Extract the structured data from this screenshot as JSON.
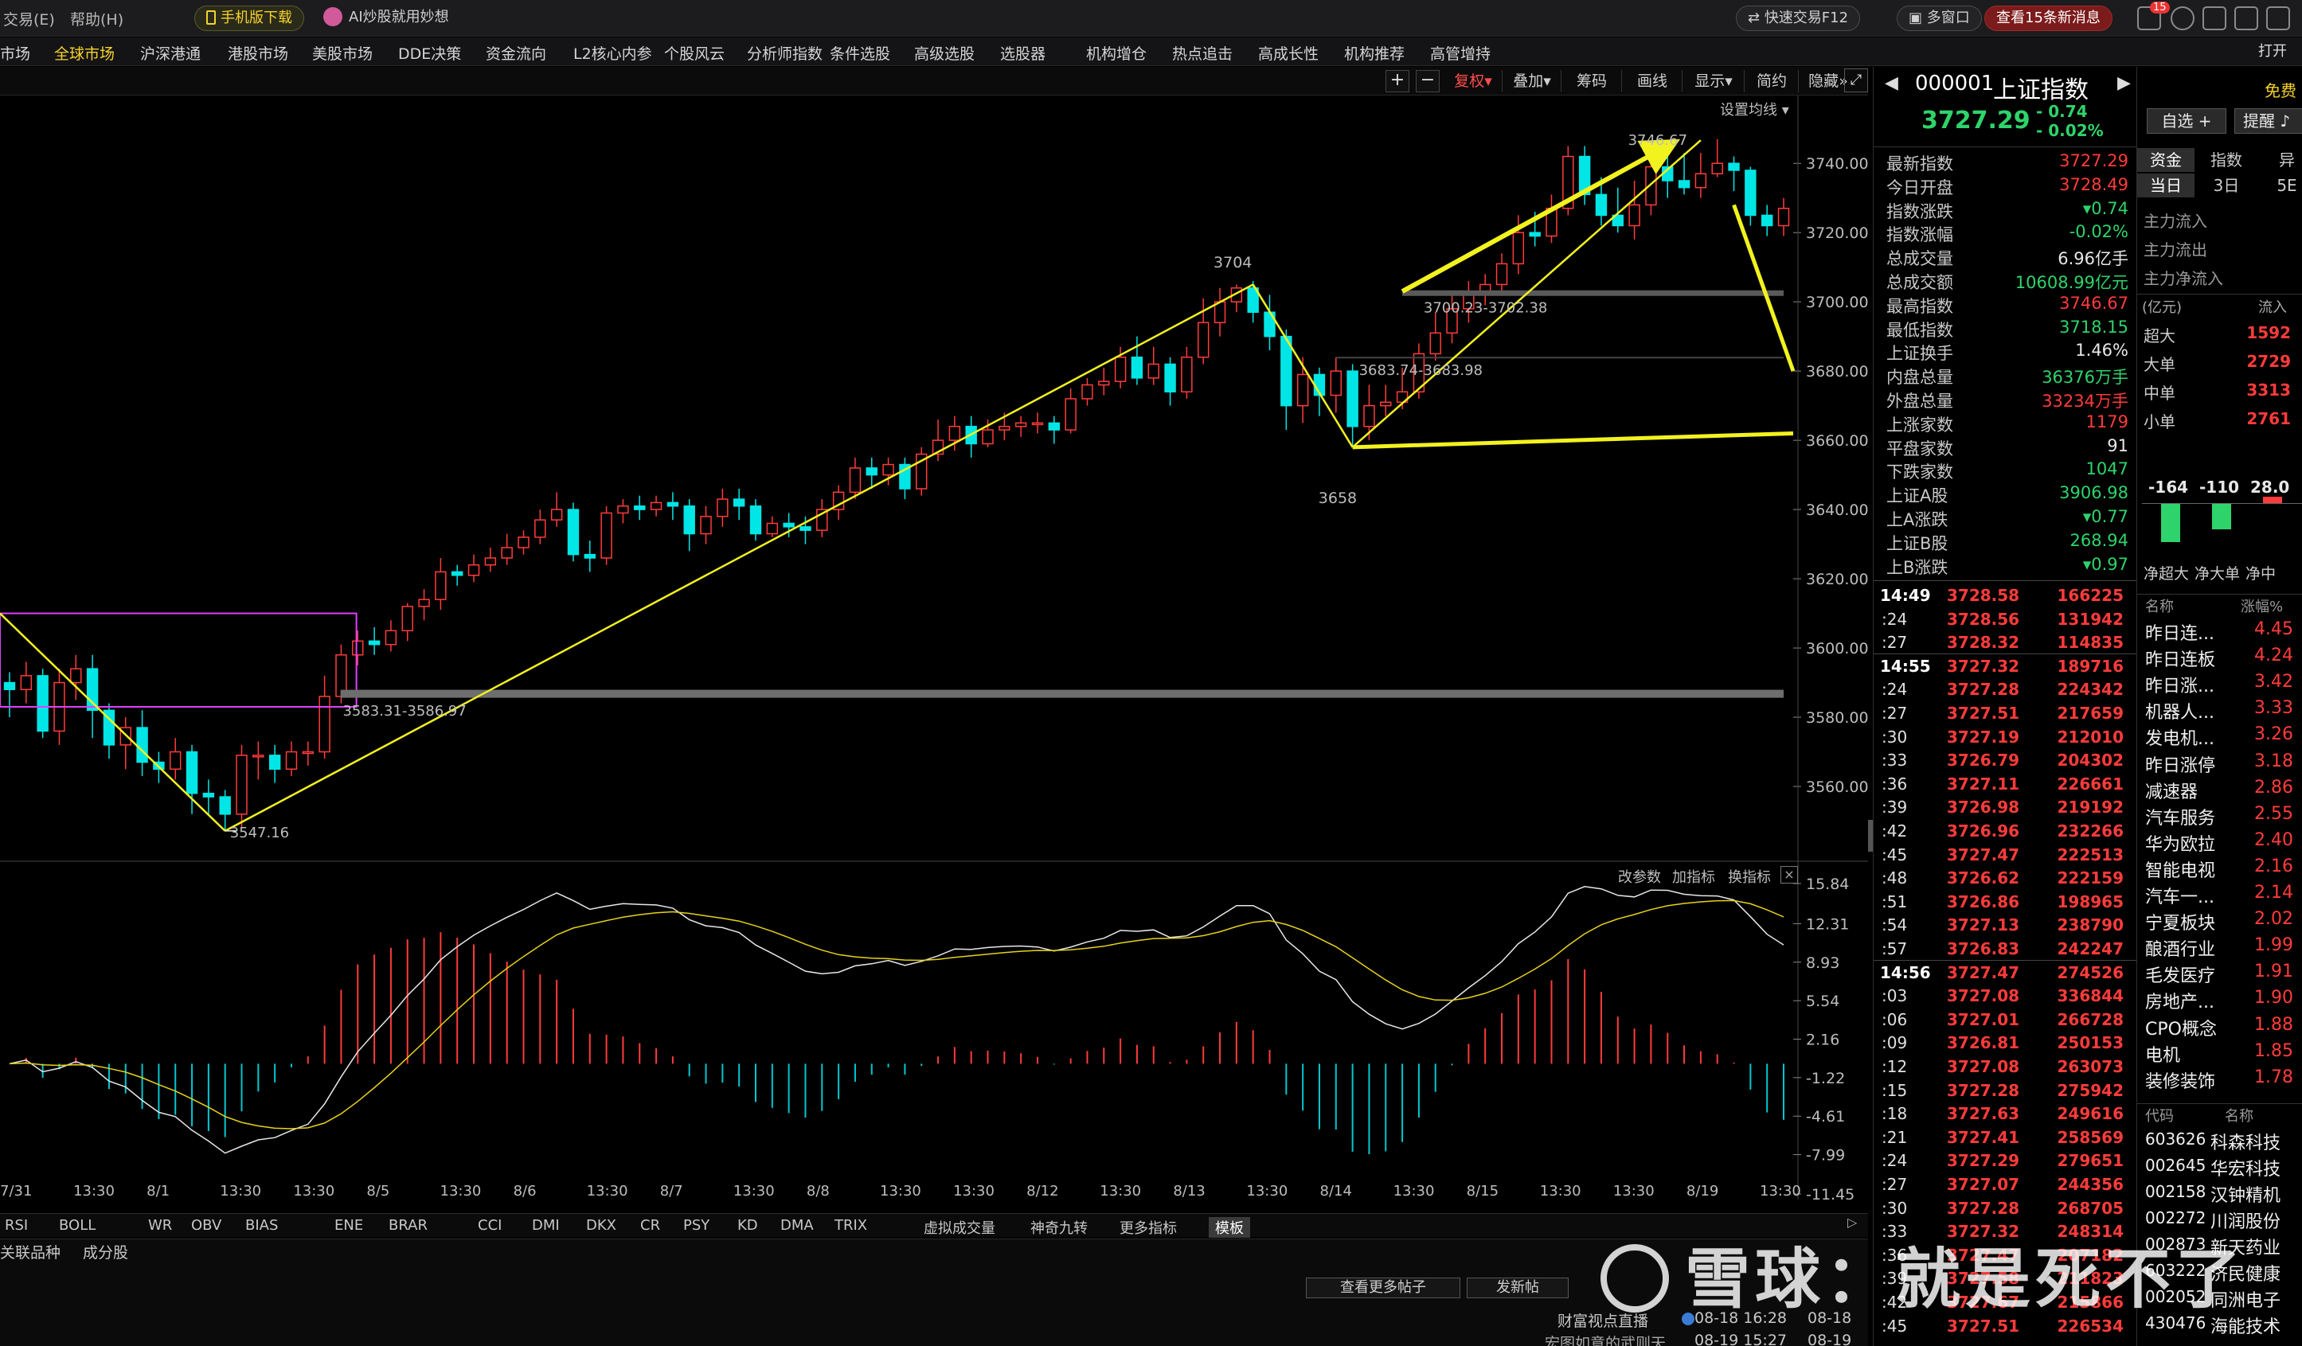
{
  "topbar": {
    "menu_trade": "交易(E)",
    "menu_help": "帮助(H)",
    "mobile_download": "手机版下载",
    "ai_banner": "AI炒股就用妙想",
    "quick_trade": "快速交易F12",
    "multi_window": "多窗口",
    "news_btn": "查看15条新消息",
    "mail_badge": "15",
    "open_label": "打开"
  },
  "nav": {
    "items": [
      "市场",
      "全球市场",
      "沪深港通",
      "港股市场",
      "美股市场",
      "DDE决策",
      "资金流向",
      "L2核心内参",
      "个股风云",
      "分析师指数",
      "条件选股",
      "高级选股",
      "选股器",
      "机构增仓",
      "热点追击",
      "高成长性",
      "机构推荐",
      "高管增持"
    ],
    "selected": "全球市场"
  },
  "chart_toolbar": {
    "fuquan": "复权",
    "overlay": "叠加",
    "chips": "筹码",
    "draw": "画线",
    "display": "显示",
    "simple": "简约",
    "hide": "隐藏",
    "plus": "+",
    "minus": "−",
    "set_ma": "设置均线"
  },
  "price_axis": [
    "3740.00",
    "3720.00",
    "3700.00",
    "3680.00",
    "3660.00",
    "3640.00",
    "3620.00",
    "3600.00",
    "3580.00",
    "3560.00"
  ],
  "macd_axis": [
    "15.84",
    "12.31",
    "8.93",
    "5.54",
    "2.16",
    "-1.22",
    "-4.61",
    "-7.99",
    "-11.45"
  ],
  "macd_controls": {
    "params": "改参数",
    "add": "加指标",
    "switch": "换指标"
  },
  "date_axis": [
    "7/31",
    "13:30",
    "8/1",
    "13:30",
    "13:30",
    "8/5",
    "13:30",
    "8/6",
    "13:30",
    "8/7",
    "13:30",
    "8/8",
    "13:30",
    "13:30",
    "8/12",
    "13:30",
    "8/13",
    "13:30",
    "8/14",
    "13:30",
    "8/15",
    "13:30",
    "13:30",
    "8/19",
    "13:30"
  ],
  "annotations": {
    "peak1": "3704",
    "trough1": "3658",
    "high_label": "3746.67",
    "low_label": "3547.16",
    "gap1": "3700.23-3702.38",
    "gap2": "3683.74-3683.98",
    "gap3": "3583.31-3586.97"
  },
  "chart_data": {
    "type": "candlestick",
    "symbol": "上证指数",
    "high_marked": 3746.67,
    "low_marked": 3547.16,
    "ylim": [
      3540,
      3755
    ],
    "candles": [
      [
        3590,
        3588,
        3593,
        3580
      ],
      [
        3588,
        3592,
        3596,
        3584
      ],
      [
        3592,
        3576,
        3594,
        3574
      ],
      [
        3576,
        3590,
        3594,
        3572
      ],
      [
        3590,
        3594,
        3598,
        3585
      ],
      [
        3594,
        3582,
        3598,
        3574
      ],
      [
        3582,
        3572,
        3584,
        3568
      ],
      [
        3572,
        3577,
        3580,
        3565
      ],
      [
        3577,
        3567,
        3582,
        3563
      ],
      [
        3567,
        3565,
        3570,
        3561
      ],
      [
        3565,
        3570,
        3574,
        3562
      ],
      [
        3570,
        3558,
        3572,
        3552
      ],
      [
        3558,
        3557,
        3562,
        3552
      ],
      [
        3557,
        3552,
        3559,
        3547
      ],
      [
        3552,
        3569,
        3572,
        3548
      ],
      [
        3569,
        3569,
        3573,
        3562
      ],
      [
        3569,
        3565,
        3572,
        3561
      ],
      [
        3565,
        3570,
        3573,
        3563
      ],
      [
        3570,
        3570,
        3573,
        3566
      ],
      [
        3570,
        3586,
        3592,
        3568
      ],
      [
        3586,
        3598,
        3601,
        3584
      ],
      [
        3598,
        3602,
        3605,
        3595
      ],
      [
        3602,
        3601,
        3606,
        3598
      ],
      [
        3601,
        3605,
        3608,
        3599
      ],
      [
        3605,
        3612,
        3613,
        3602
      ],
      [
        3612,
        3614,
        3617,
        3608
      ],
      [
        3614,
        3622,
        3626,
        3611
      ],
      [
        3622,
        3621,
        3624,
        3618
      ],
      [
        3621,
        3624,
        3627,
        3619
      ],
      [
        3624,
        3626,
        3629,
        3622
      ],
      [
        3626,
        3629,
        3633,
        3624
      ],
      [
        3629,
        3632,
        3634,
        3627
      ],
      [
        3632,
        3637,
        3640,
        3630
      ],
      [
        3637,
        3640,
        3645,
        3635
      ],
      [
        3640,
        3627,
        3642,
        3625
      ],
      [
        3627,
        3626,
        3631,
        3622
      ],
      [
        3626,
        3639,
        3641,
        3624
      ],
      [
        3639,
        3641,
        3643,
        3636
      ],
      [
        3641,
        3640,
        3644,
        3637
      ],
      [
        3640,
        3642,
        3644,
        3638
      ],
      [
        3642,
        3641,
        3645,
        3637
      ],
      [
        3641,
        3633,
        3643,
        3628
      ],
      [
        3633,
        3638,
        3641,
        3630
      ],
      [
        3638,
        3643,
        3646,
        3635
      ],
      [
        3643,
        3641,
        3646,
        3637
      ],
      [
        3641,
        3633,
        3643,
        3631
      ],
      [
        3633,
        3636,
        3638,
        3632
      ],
      [
        3636,
        3635,
        3639,
        3632
      ],
      [
        3635,
        3634,
        3638,
        3630
      ],
      [
        3634,
        3640,
        3643,
        3632
      ],
      [
        3640,
        3645,
        3647,
        3637
      ],
      [
        3645,
        3652,
        3655,
        3643
      ],
      [
        3652,
        3650,
        3655,
        3646
      ],
      [
        3650,
        3653,
        3655,
        3647
      ],
      [
        3653,
        3646,
        3655,
        3643
      ],
      [
        3646,
        3656,
        3658,
        3644
      ],
      [
        3656,
        3660,
        3666,
        3654
      ],
      [
        3660,
        3664,
        3667,
        3657
      ],
      [
        3664,
        3659,
        3667,
        3655
      ],
      [
        3659,
        3663,
        3666,
        3658
      ],
      [
        3663,
        3664,
        3668,
        3660
      ],
      [
        3664,
        3665,
        3667,
        3661
      ],
      [
        3665,
        3665,
        3668,
        3662
      ],
      [
        3665,
        3663,
        3667,
        3659
      ],
      [
        3663,
        3672,
        3675,
        3662
      ],
      [
        3672,
        3676,
        3678,
        3670
      ],
      [
        3676,
        3677,
        3681,
        3673
      ],
      [
        3677,
        3684,
        3687,
        3675
      ],
      [
        3684,
        3678,
        3690,
        3676
      ],
      [
        3678,
        3682,
        3687,
        3676
      ],
      [
        3682,
        3674,
        3684,
        3670
      ],
      [
        3674,
        3684,
        3687,
        3672
      ],
      [
        3684,
        3694,
        3701,
        3682
      ],
      [
        3694,
        3700,
        3704,
        3690
      ],
      [
        3700,
        3704,
        3705,
        3697
      ],
      [
        3704,
        3697,
        3706,
        3694
      ],
      [
        3697,
        3690,
        3702,
        3686
      ],
      [
        3690,
        3670,
        3692,
        3663
      ],
      [
        3670,
        3679,
        3684,
        3665
      ],
      [
        3679,
        3673,
        3681,
        3667
      ],
      [
        3673,
        3680,
        3684,
        3668
      ],
      [
        3680,
        3664,
        3682,
        3658
      ],
      [
        3664,
        3670,
        3676,
        3660
      ],
      [
        3670,
        3671,
        3676,
        3667
      ],
      [
        3671,
        3674,
        3681,
        3669
      ],
      [
        3674,
        3685,
        3688,
        3672
      ],
      [
        3685,
        3691,
        3697,
        3683
      ],
      [
        3691,
        3698,
        3703,
        3688
      ],
      [
        3698,
        3702,
        3706,
        3694
      ],
      [
        3702,
        3705,
        3708,
        3699
      ],
      [
        3705,
        3711,
        3714,
        3703
      ],
      [
        3711,
        3720,
        3725,
        3708
      ],
      [
        3720,
        3719,
        3726,
        3716
      ],
      [
        3719,
        3727,
        3731,
        3717
      ],
      [
        3727,
        3742,
        3745,
        3725
      ],
      [
        3742,
        3731,
        3745,
        3728
      ],
      [
        3731,
        3725,
        3736,
        3722
      ],
      [
        3725,
        3722,
        3733,
        3720
      ],
      [
        3722,
        3728,
        3735,
        3718
      ],
      [
        3728,
        3739,
        3743,
        3725
      ],
      [
        3739,
        3735,
        3742,
        3730
      ],
      [
        3735,
        3733,
        3743,
        3731
      ],
      [
        3733,
        3737,
        3743,
        3730
      ],
      [
        3737,
        3740,
        3747,
        3736
      ],
      [
        3740,
        3738,
        3742,
        3732
      ],
      [
        3738,
        3725,
        3739,
        3722
      ],
      [
        3725,
        3722,
        3728,
        3719
      ],
      [
        3722,
        3727,
        3730,
        3719
      ]
    ]
  },
  "right_header": {
    "code": "000001",
    "name": "上证指数",
    "price": "3727.29",
    "change": "- 0.74",
    "pct": "- 0.02%",
    "watch": "自选 +",
    "alert": "提醒",
    "free_label": "免费"
  },
  "quote_rows": [
    {
      "k": "最新指数",
      "v": "3727.29",
      "c": "red"
    },
    {
      "k": "今日开盘",
      "v": "3728.49",
      "c": "red"
    },
    {
      "k": "指数涨跌",
      "v": "▾0.74",
      "c": "grn"
    },
    {
      "k": "指数涨幅",
      "v": "-0.02%",
      "c": "grn"
    },
    {
      "k": "总成交量",
      "v": "6.96亿手",
      "c": "wht"
    },
    {
      "k": "总成交额",
      "v": "10608.99亿元",
      "c": "red2"
    },
    {
      "k": "最高指数",
      "v": "3746.67",
      "c": "red"
    },
    {
      "k": "最低指数",
      "v": "3718.15",
      "c": "grn"
    },
    {
      "k": "上证换手",
      "v": "1.46%",
      "c": "wht"
    },
    {
      "k": "内盘总量",
      "v": "36376万手",
      "c": "grn"
    },
    {
      "k": "外盘总量",
      "v": "33234万手",
      "c": "red"
    },
    {
      "k": "上涨家数",
      "v": "1179",
      "c": "red"
    },
    {
      "k": "平盘家数",
      "v": "91",
      "c": "wht"
    },
    {
      "k": "下跌家数",
      "v": "1047",
      "c": "grn"
    },
    {
      "k": "上证A股",
      "v": "3906.98",
      "c": "grn"
    },
    {
      "k": "上A涨跌",
      "v": "▾0.77",
      "c": "grn"
    },
    {
      "k": "上证B股",
      "v": "268.94",
      "c": "grn"
    },
    {
      "k": "上B涨跌",
      "v": "▾0.97",
      "c": "grn"
    }
  ],
  "ticks": [
    {
      "t": "14:49",
      "p": "3728.58",
      "v": "166225",
      "b": true
    },
    {
      "t": ":24",
      "p": "3728.56",
      "v": "131942"
    },
    {
      "t": ":27",
      "p": "3728.32",
      "v": "114835"
    },
    {
      "t": "14:55",
      "p": "3727.32",
      "v": "189716",
      "b": true
    },
    {
      "t": ":24",
      "p": "3727.28",
      "v": "224342"
    },
    {
      "t": ":27",
      "p": "3727.51",
      "v": "217659"
    },
    {
      "t": ":30",
      "p": "3727.19",
      "v": "212010"
    },
    {
      "t": ":33",
      "p": "3726.79",
      "v": "204302"
    },
    {
      "t": ":36",
      "p": "3727.11",
      "v": "226661"
    },
    {
      "t": ":39",
      "p": "3726.98",
      "v": "219192"
    },
    {
      "t": ":42",
      "p": "3726.96",
      "v": "232266"
    },
    {
      "t": ":45",
      "p": "3727.47",
      "v": "222513"
    },
    {
      "t": ":48",
      "p": "3726.62",
      "v": "222159"
    },
    {
      "t": ":51",
      "p": "3726.86",
      "v": "198965"
    },
    {
      "t": ":54",
      "p": "3727.13",
      "v": "238790"
    },
    {
      "t": ":57",
      "p": "3726.83",
      "v": "242247"
    },
    {
      "t": "14:56",
      "p": "3727.47",
      "v": "274526",
      "b": true
    },
    {
      "t": ":03",
      "p": "3727.08",
      "v": "336844"
    },
    {
      "t": ":06",
      "p": "3727.01",
      "v": "266728"
    },
    {
      "t": ":09",
      "p": "3726.81",
      "v": "250153"
    },
    {
      "t": ":12",
      "p": "3727.08",
      "v": "263073"
    },
    {
      "t": ":15",
      "p": "3727.28",
      "v": "275942"
    },
    {
      "t": ":18",
      "p": "3727.63",
      "v": "249616"
    },
    {
      "t": ":21",
      "p": "3727.41",
      "v": "258569"
    },
    {
      "t": ":24",
      "p": "3727.29",
      "v": "279651"
    },
    {
      "t": ":27",
      "p": "3727.07",
      "v": "244356"
    },
    {
      "t": ":30",
      "p": "3727.28",
      "v": "268705"
    },
    {
      "t": ":33",
      "p": "3727.32",
      "v": "248314"
    },
    {
      "t": ":36",
      "p": "3727.47",
      "v": "207182"
    },
    {
      "t": ":39",
      "p": "3727.58",
      "v": "211823"
    },
    {
      "t": ":42",
      "p": "3727.67",
      "v": "215866"
    },
    {
      "t": ":45",
      "p": "3727.51",
      "v": "226534"
    }
  ],
  "flow": {
    "tabs": [
      "资金",
      "指数",
      "异"
    ],
    "sub_tabs": [
      "当日",
      "3日",
      "5E"
    ],
    "labels": [
      "主力流入",
      "主力流出",
      "主力净流入"
    ],
    "unit": "(亿元)",
    "col": "流入",
    "rows": [
      {
        "k": "超大",
        "v": "1592"
      },
      {
        "k": "大单",
        "v": "2729"
      },
      {
        "k": "中单",
        "v": "3313"
      },
      {
        "k": "小单",
        "v": "2761"
      }
    ],
    "bars": [
      {
        "v": "-164",
        "l": "净超大"
      },
      {
        "v": "-110",
        "l": "净大单"
      },
      {
        "v": "28.0",
        "l": "净中"
      }
    ]
  },
  "sectors_header": {
    "name": "名称",
    "pct": "涨幅%"
  },
  "sectors": [
    {
      "n": "昨日连...",
      "c": "4.45"
    },
    {
      "n": "昨日连板",
      "c": "4.24"
    },
    {
      "n": "昨日涨...",
      "c": "3.42"
    },
    {
      "n": "机器人...",
      "c": "3.33"
    },
    {
      "n": "发电机...",
      "c": "3.26"
    },
    {
      "n": "昨日涨停",
      "c": "3.18"
    },
    {
      "n": "减速器",
      "c": "2.86"
    },
    {
      "n": "汽车服务",
      "c": "2.55"
    },
    {
      "n": "华为欧拉",
      "c": "2.40"
    },
    {
      "n": "智能电视",
      "c": "2.16"
    },
    {
      "n": "汽车一...",
      "c": "2.14"
    },
    {
      "n": "宁夏板块",
      "c": "2.02"
    },
    {
      "n": "酿酒行业",
      "c": "1.99"
    },
    {
      "n": "毛发医疗",
      "c": "1.91"
    },
    {
      "n": "房地产...",
      "c": "1.90"
    },
    {
      "n": "CPO概念",
      "c": "1.88"
    },
    {
      "n": "电机",
      "c": "1.85"
    },
    {
      "n": "装修装饰",
      "c": "1.78"
    }
  ],
  "stocks_header": {
    "code": "代码",
    "name": "名称"
  },
  "stocks": [
    {
      "cd": "603626",
      "nm": "科森科技"
    },
    {
      "cd": "002645",
      "nm": "华宏科技"
    },
    {
      "cd": "002158",
      "nm": "汉钟精机"
    },
    {
      "cd": "002272",
      "nm": "川润股份"
    },
    {
      "cd": "002873",
      "nm": "新天药业"
    },
    {
      "cd": "603222",
      "nm": "济民健康"
    },
    {
      "cd": "002052",
      "nm": "同洲电子"
    },
    {
      "cd": "430476",
      "nm": "海能技术"
    }
  ],
  "indicators": [
    "RSI",
    "BOLL",
    "WR",
    "OBV",
    "BIAS",
    "ENE",
    "BRAR",
    "CCI",
    "DMI",
    "DKX",
    "CR",
    "PSY",
    "KD",
    "DMA",
    "TRIX",
    "虚拟成交量",
    "神奇九转",
    "更多指标",
    "模板"
  ],
  "indicator_selected": "模板",
  "bottom": {
    "tab1": "关联品种",
    "tab2": "成分股",
    "more_posts": "查看更多帖子",
    "post": "发新帖",
    "news1_title": "财富视点直播",
    "news1_time": "08-18 16:28",
    "news1_date": "08-18",
    "news2_title": "宏图如意的武则天",
    "news2_time": "08-19 15:27",
    "news2_date": "08-19"
  },
  "watermark": "雪球：就是死不了"
}
